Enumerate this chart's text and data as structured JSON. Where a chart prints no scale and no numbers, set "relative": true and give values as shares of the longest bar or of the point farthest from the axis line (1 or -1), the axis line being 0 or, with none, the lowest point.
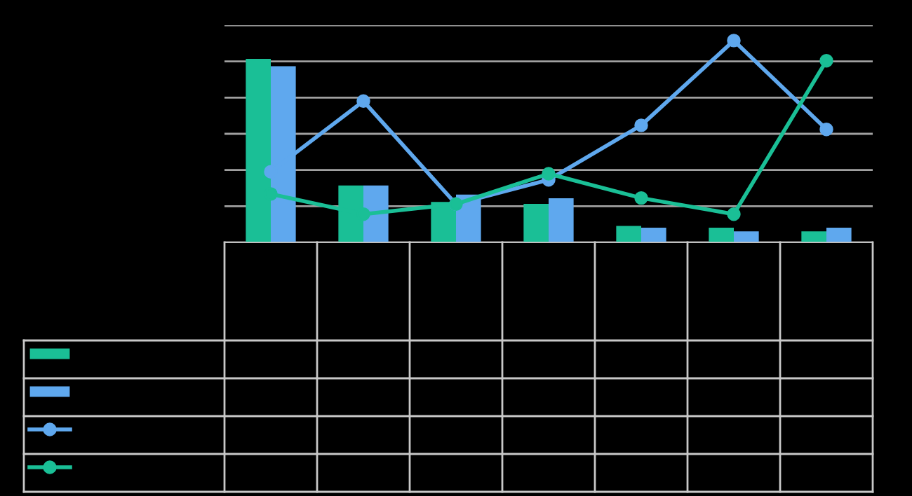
{
  "chart_data": [
    {
      "type": "bar",
      "relative": true,
      "grid": "y",
      "categories": [
        null,
        null,
        null,
        null,
        null,
        null,
        null
      ],
      "series": [
        {
          "color": "#1abf96",
          "values": [
            1,
            0.31,
            0.22,
            0.21,
            0.09,
            0.08,
            0.06
          ]
        },
        {
          "color": "#5fa8ee",
          "values": [
            0.96,
            0.31,
            0.26,
            0.24,
            0.08,
            0.06,
            0.08
          ]
        }
      ]
    },
    {
      "type": "line",
      "relative": true,
      "marker": "circle",
      "categories": [
        null,
        null,
        null,
        null,
        null,
        null,
        null
      ],
      "series": [
        {
          "color": "#5fa8ee",
          "values": [
            0.35,
            0.7,
            0.19,
            0.31,
            0.58,
            1,
            0.56
          ]
        },
        {
          "color": "#1abf96",
          "values": [
            0.24,
            0.14,
            0.19,
            0.34,
            0.22,
            0.14,
            0.9
          ]
        }
      ]
    }
  ]
}
